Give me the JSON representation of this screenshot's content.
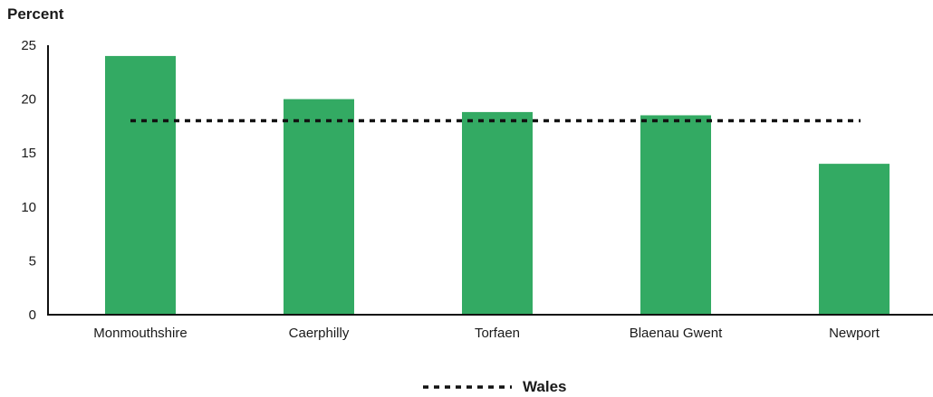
{
  "chart_data": {
    "type": "bar",
    "ylabel": "Percent",
    "xlabel": "",
    "categories": [
      "Monmouthshire",
      "Caerphilly",
      "Torfaen",
      "Blaenau Gwent",
      "Newport"
    ],
    "values": [
      24.0,
      20.0,
      18.8,
      18.5,
      14.0
    ],
    "ylim": [
      0,
      25
    ],
    "yticks": [
      0,
      5,
      10,
      15,
      20,
      25
    ],
    "reference_line": {
      "name": "Wales",
      "value": 18.0,
      "style": "dotted"
    },
    "bar_color": "#33aa63",
    "line_color": "#111111",
    "legend": {
      "entries": [
        "Wales"
      ],
      "placement": "bottom-center"
    },
    "grid": false
  }
}
